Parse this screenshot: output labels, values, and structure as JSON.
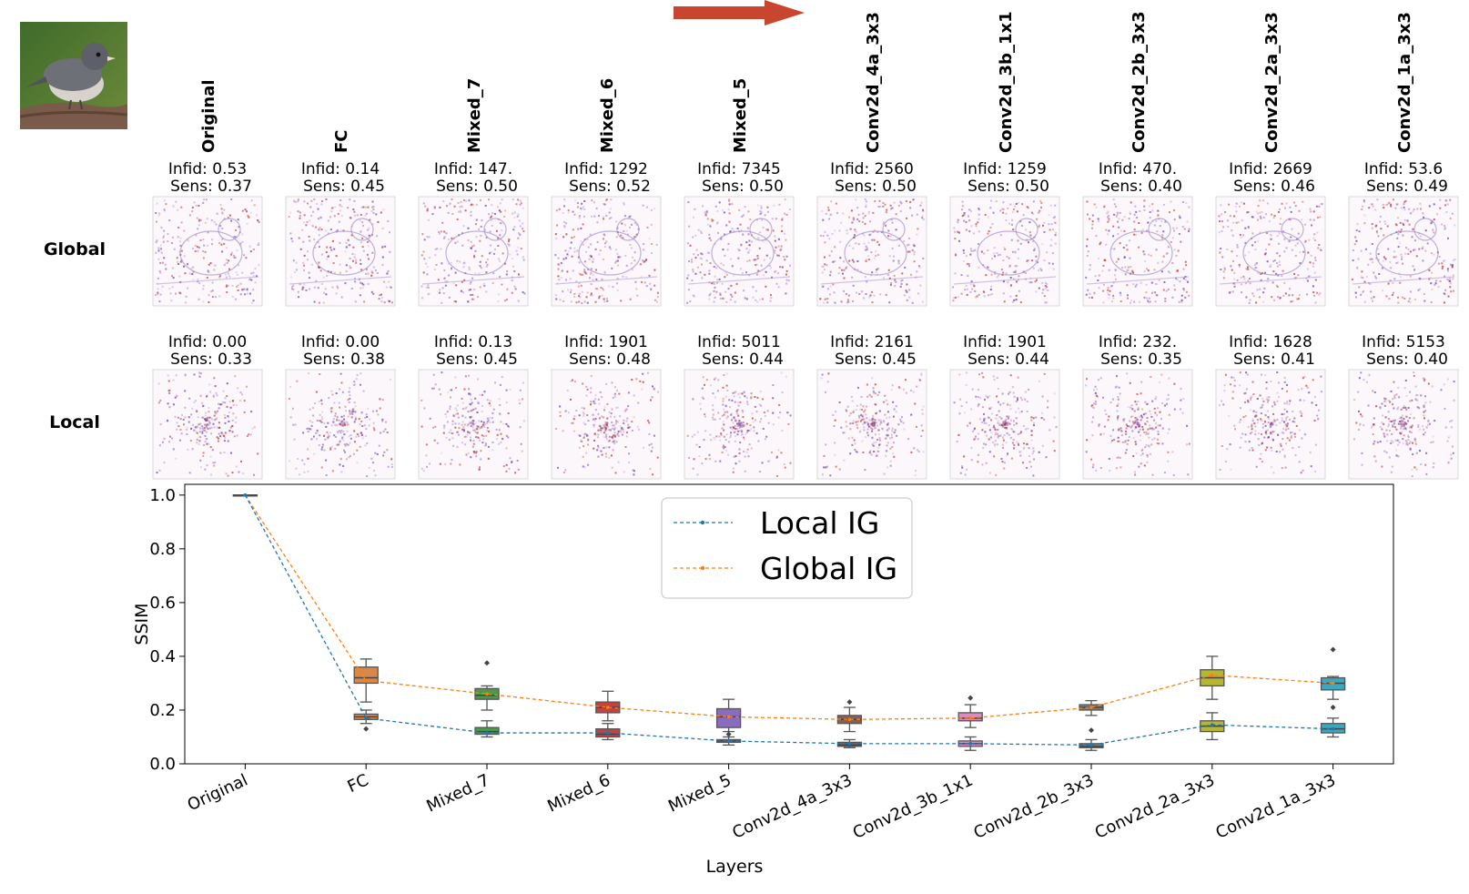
{
  "rows": [
    {
      "label": "Global",
      "infid": [
        "Infid: 0.53",
        "Infid: 0.14",
        "Infid: 147.",
        "Infid: 1292",
        "Infid: 7345",
        "Infid: 2560",
        "Infid: 1259",
        "Infid: 470.",
        "Infid: 2669",
        "Infid: 53.6"
      ],
      "sens": [
        "Sens: 0.37",
        "Sens: 0.45",
        "Sens: 0.50",
        "Sens: 0.52",
        "Sens: 0.50",
        "Sens: 0.50",
        "Sens: 0.50",
        "Sens: 0.40",
        "Sens: 0.46",
        "Sens: 0.49"
      ]
    },
    {
      "label": "Local",
      "infid": [
        "Infid: 0.00",
        "Infid: 0.00",
        "Infid: 0.13",
        "Infid: 1901",
        "Infid: 5011",
        "Infid: 2161",
        "Infid: 1901",
        "Infid: 232.",
        "Infid: 1628",
        "Infid: 5153"
      ],
      "sens": [
        "Sens: 0.33",
        "Sens: 0.38",
        "Sens: 0.45",
        "Sens: 0.48",
        "Sens: 0.44",
        "Sens: 0.45",
        "Sens: 0.44",
        "Sens: 0.35",
        "Sens: 0.41",
        "Sens: 0.40"
      ]
    }
  ],
  "colors": {
    "local_line": "#1f77b4",
    "global_line": "#ff7f0e",
    "arrow": "#c8452f",
    "boxes": [
      "#d9884a",
      "#d9884a",
      "#4a9a4a",
      "#c94040",
      "#8a6bbf",
      "#8c5e52",
      "#d98cc4",
      "#7f7f7f",
      "#b5b536",
      "#3aa9bf"
    ]
  },
  "chart_data": {
    "type": "box",
    "title": "",
    "xlabel": "Layers",
    "ylabel": "SSIM",
    "ylim": [
      0,
      1.04
    ],
    "yticks": [
      "0.0",
      "0.2",
      "0.4",
      "0.6",
      "0.8",
      "1.0"
    ],
    "categories": [
      "Original",
      "FC",
      "Mixed_7",
      "Mixed_6",
      "Mixed_5",
      "Conv2d_4a_3x3",
      "Conv2d_3b_1x1",
      "Conv2d_2b_3x3",
      "Conv2d_2a_3x3",
      "Conv2d_1a_3x3"
    ],
    "legend": {
      "position": "top-center",
      "entries": [
        "Local IG",
        "Global IG"
      ]
    },
    "series": [
      {
        "name": "Global IG",
        "median_line": [
          1.0,
          0.31,
          0.26,
          0.21,
          0.175,
          0.165,
          0.17,
          0.21,
          0.33,
          0.3
        ],
        "boxes": [
          {
            "min": 1.0,
            "q1": 1.0,
            "median": 1.0,
            "q3": 1.0,
            "max": 1.0,
            "outliers": []
          },
          {
            "min": 0.23,
            "q1": 0.3,
            "median": 0.32,
            "q3": 0.36,
            "max": 0.39,
            "outliers": []
          },
          {
            "min": 0.2,
            "q1": 0.24,
            "median": 0.255,
            "q3": 0.28,
            "max": 0.29,
            "outliers": [
              0.375
            ]
          },
          {
            "min": 0.16,
            "q1": 0.19,
            "median": 0.21,
            "q3": 0.23,
            "max": 0.27,
            "outliers": []
          },
          {
            "min": 0.12,
            "q1": 0.135,
            "median": 0.175,
            "q3": 0.205,
            "max": 0.24,
            "outliers": [
              0.11
            ]
          },
          {
            "min": 0.12,
            "q1": 0.15,
            "median": 0.165,
            "q3": 0.18,
            "max": 0.21,
            "outliers": [
              0.23
            ]
          },
          {
            "min": 0.135,
            "q1": 0.16,
            "median": 0.17,
            "q3": 0.19,
            "max": 0.22,
            "outliers": [
              0.245
            ]
          },
          {
            "min": 0.18,
            "q1": 0.2,
            "median": 0.21,
            "q3": 0.22,
            "max": 0.235,
            "outliers": []
          },
          {
            "min": 0.24,
            "q1": 0.29,
            "median": 0.32,
            "q3": 0.35,
            "max": 0.4,
            "outliers": []
          },
          {
            "min": 0.24,
            "q1": 0.275,
            "median": 0.3,
            "q3": 0.32,
            "max": 0.325,
            "outliers": [
              0.425
            ]
          }
        ]
      },
      {
        "name": "Local IG",
        "median_line": [
          1.0,
          0.17,
          0.115,
          0.115,
          0.085,
          0.075,
          0.075,
          0.07,
          0.145,
          0.13
        ],
        "boxes": [
          {
            "min": 1.0,
            "q1": 1.0,
            "median": 1.0,
            "q3": 1.0,
            "max": 1.0,
            "outliers": []
          },
          {
            "min": 0.15,
            "q1": 0.165,
            "median": 0.175,
            "q3": 0.185,
            "max": 0.2,
            "outliers": [
              0.13
            ]
          },
          {
            "min": 0.1,
            "q1": 0.11,
            "median": 0.12,
            "q3": 0.135,
            "max": 0.16,
            "outliers": []
          },
          {
            "min": 0.09,
            "q1": 0.1,
            "median": 0.11,
            "q3": 0.13,
            "max": 0.15,
            "outliers": []
          },
          {
            "min": 0.07,
            "q1": 0.08,
            "median": 0.085,
            "q3": 0.09,
            "max": 0.1,
            "outliers": []
          },
          {
            "min": 0.06,
            "q1": 0.065,
            "median": 0.07,
            "q3": 0.08,
            "max": 0.09,
            "outliers": []
          },
          {
            "min": 0.05,
            "q1": 0.065,
            "median": 0.075,
            "q3": 0.085,
            "max": 0.1,
            "outliers": []
          },
          {
            "min": 0.05,
            "q1": 0.06,
            "median": 0.065,
            "q3": 0.075,
            "max": 0.09,
            "outliers": [
              0.125
            ]
          },
          {
            "min": 0.09,
            "q1": 0.12,
            "median": 0.14,
            "q3": 0.16,
            "max": 0.19,
            "outliers": []
          },
          {
            "min": 0.1,
            "q1": 0.115,
            "median": 0.13,
            "q3": 0.15,
            "max": 0.17,
            "outliers": [
              0.21
            ]
          }
        ]
      }
    ]
  }
}
